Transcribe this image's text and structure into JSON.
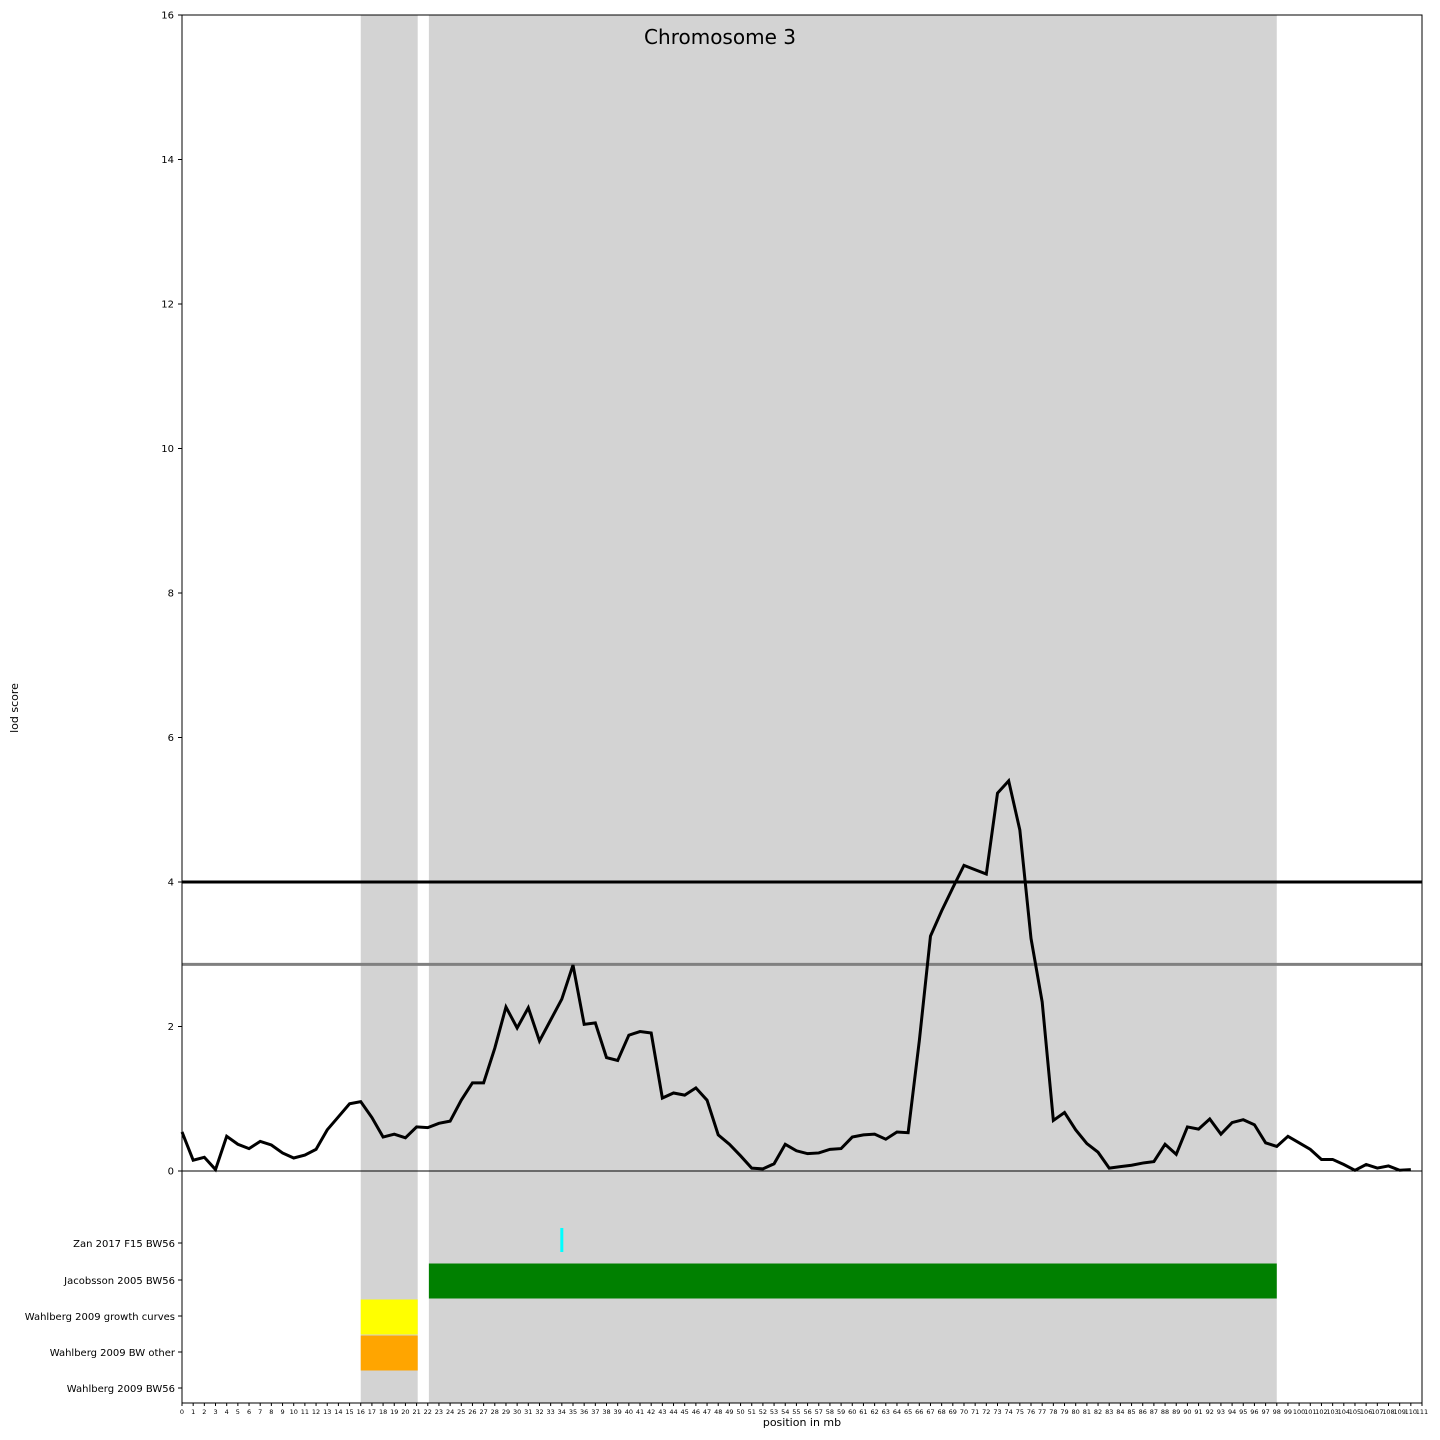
{
  "chart_data": {
    "type": "line",
    "title": "Chromosome 3",
    "xlabel": "position in mb",
    "ylabel": "lod score",
    "xlim": [
      0,
      111
    ],
    "ylim": [
      0,
      16
    ],
    "yticks": [
      0,
      2,
      4,
      6,
      8,
      10,
      12,
      14,
      16
    ],
    "x": [
      0,
      1,
      2,
      3,
      4,
      5,
      6,
      7,
      8,
      9,
      10,
      11,
      12,
      13,
      14,
      15,
      16,
      17,
      18,
      19,
      20,
      21,
      22,
      23,
      24,
      25,
      26,
      27,
      28,
      29,
      30,
      31,
      32,
      33,
      34,
      35,
      36,
      37,
      38,
      39,
      40,
      41,
      42,
      43,
      44,
      45,
      46,
      47,
      48,
      49,
      50,
      51,
      52,
      53,
      54,
      55,
      56,
      57,
      58,
      59,
      60,
      61,
      62,
      63,
      64,
      65,
      66,
      67,
      68,
      69,
      70,
      71,
      72,
      73,
      74,
      75,
      76,
      77,
      78,
      79,
      80,
      81,
      82,
      83,
      84,
      85,
      86,
      87,
      88,
      89,
      90,
      91,
      92,
      93,
      94,
      95,
      96,
      97,
      98,
      99,
      100,
      101,
      102,
      103,
      104,
      105,
      106,
      107,
      108,
      109,
      110
    ],
    "series": [
      {
        "color": "#000000",
        "values": [
          0.54,
          0.15,
          0.19,
          0.02,
          0.48,
          0.37,
          0.31,
          0.41,
          0.36,
          0.25,
          0.18,
          0.22,
          0.3,
          0.57,
          0.75,
          0.93,
          0.96,
          0.74,
          0.47,
          0.51,
          0.46,
          0.61,
          0.6,
          0.66,
          0.69,
          0.98,
          1.22,
          1.22,
          1.7,
          2.27,
          1.98,
          2.26,
          1.8,
          2.09,
          2.38,
          2.85,
          2.03,
          2.05,
          1.57,
          1.53,
          1.88,
          1.93,
          1.91,
          1.01,
          1.08,
          1.05,
          1.15,
          0.98,
          0.5,
          0.37,
          0.21,
          0.04,
          0.03,
          0.1,
          0.37,
          0.28,
          0.24,
          0.25,
          0.3,
          0.31,
          0.47,
          0.5,
          0.51,
          0.44,
          0.54,
          0.53,
          1.8,
          3.25,
          3.6,
          3.92,
          4.23,
          4.17,
          4.11,
          5.23,
          5.4,
          4.72,
          3.22,
          2.34,
          0.7,
          0.81,
          0.57,
          0.38,
          0.26,
          0.04,
          0.06,
          0.08,
          0.11,
          0.13,
          0.37,
          0.23,
          0.61,
          0.58,
          0.72,
          0.51,
          0.67,
          0.71,
          0.64,
          0.39,
          0.34,
          0.48,
          0.39,
          0.3,
          0.16,
          0.16,
          0.09,
          0.01,
          0.09,
          0.04,
          0.07,
          0.01,
          0.02
        ]
      }
    ],
    "thresholds": [
      {
        "value": 4.0,
        "color": "#000000"
      },
      {
        "value": 2.86,
        "color": "#808080"
      }
    ],
    "shaded_regions": [
      {
        "start": 16,
        "end": 21.1,
        "color": "#d3d3d3"
      },
      {
        "start": 22.1,
        "end": 98.0,
        "color": "#d3d3d3"
      }
    ],
    "tracks": [
      {
        "label": "Zan 2017 F15 BW56"
      },
      {
        "label": "Jacobsson 2005 BW56"
      },
      {
        "label": "Wahlberg 2009 growth curves"
      },
      {
        "label": "Wahlberg 2009 BW other"
      },
      {
        "label": "Wahlberg 2009 BW56"
      }
    ],
    "track_segments": [
      {
        "track": 0,
        "start": 34.0,
        "end": 34.15,
        "color": "#00ffff"
      },
      {
        "track": 1,
        "start": 22.1,
        "end": 98.0,
        "color": "#008000"
      },
      {
        "track": 2,
        "start": 16,
        "end": 21.1,
        "color": "#ffff00"
      },
      {
        "track": 3,
        "start": 16,
        "end": 21.1,
        "color": "#ffa500"
      }
    ],
    "grid": false,
    "legend": "none"
  }
}
